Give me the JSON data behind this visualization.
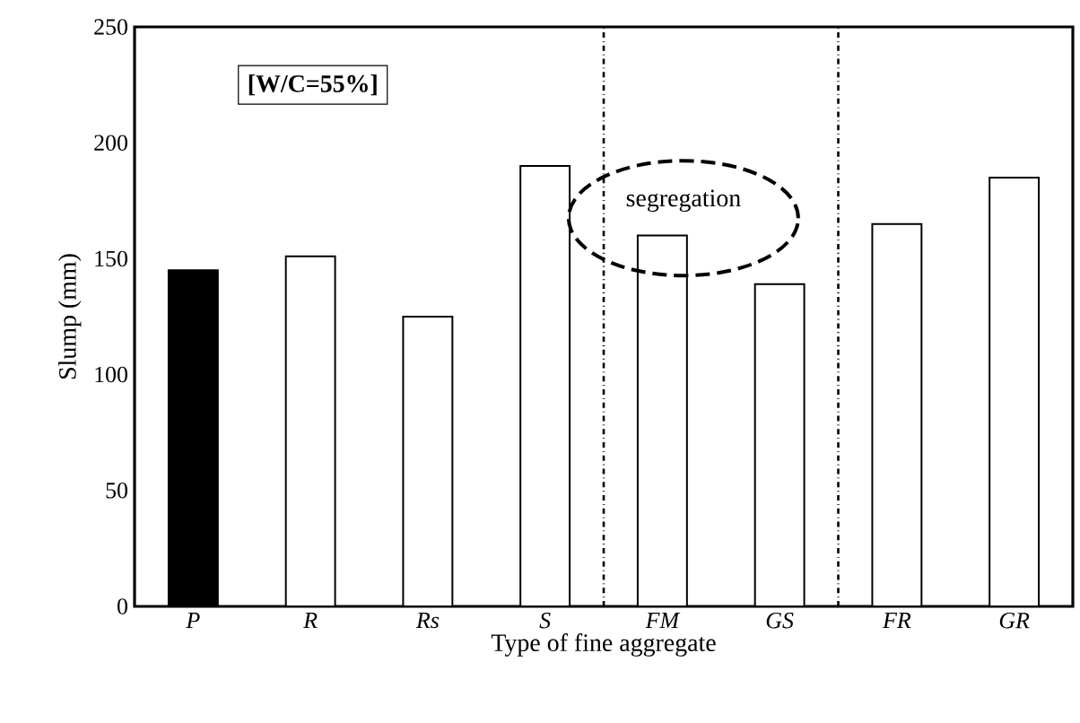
{
  "chart_data": {
    "type": "bar",
    "xlabel": "Type of fine aggregate",
    "ylabel": "Slump (mm)",
    "categories": [
      "P",
      "R",
      "Rs",
      "S",
      "FM",
      "GS",
      "FR",
      "GR"
    ],
    "values": [
      145,
      151,
      125,
      190,
      160,
      139,
      165,
      185
    ],
    "colors": [
      "#000000",
      "#ffffff",
      "#ffffff",
      "#ffffff",
      "#ffffff",
      "#ffffff",
      "#ffffff",
      "#ffffff"
    ],
    "ylim": [
      0,
      250
    ],
    "yticks": [
      0,
      50,
      100,
      150,
      200,
      250
    ],
    "annotations": [
      "[W/C=55%]",
      "segregation"
    ]
  }
}
